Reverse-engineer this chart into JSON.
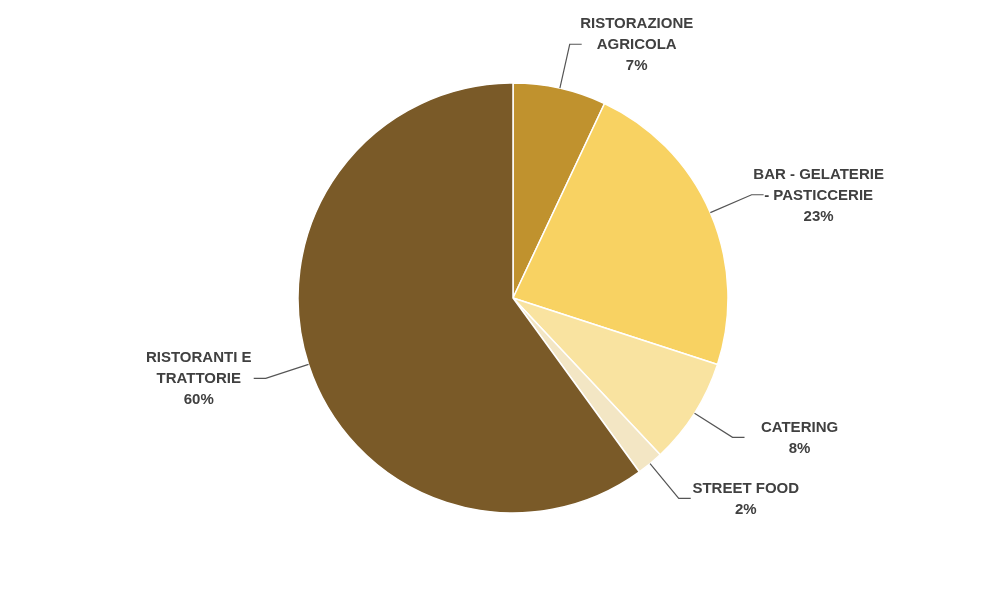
{
  "chart_data": {
    "type": "pie",
    "categories": [
      "RISTORAZIONE AGRICOLA",
      "BAR - GELATERIE - PASTICCERIE",
      "CATERING",
      "STREET FOOD",
      "RISTORANTI E TRATTORIE"
    ],
    "values": [
      7,
      23,
      8,
      2,
      60
    ],
    "value_labels": [
      "7%",
      "23%",
      "8%",
      "2%",
      "60%"
    ],
    "colors": [
      "#c0922e",
      "#f8d262",
      "#f9e3a0",
      "#f3e6c4",
      "#7a5a28"
    ]
  }
}
